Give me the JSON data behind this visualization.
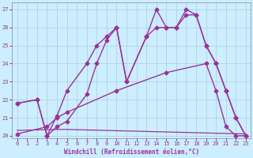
{
  "xlabel": "Windchill (Refroidissement éolien,°C)",
  "bg_color": "#cceeff",
  "grid_color": "#aaccdd",
  "line_color": "#993399",
  "xlim": [
    -0.5,
    23.5
  ],
  "ylim": [
    19.85,
    27.4
  ],
  "yticks": [
    20,
    21,
    22,
    23,
    24,
    25,
    26,
    27
  ],
  "xticks": [
    0,
    1,
    2,
    3,
    4,
    5,
    6,
    7,
    8,
    9,
    10,
    11,
    12,
    13,
    14,
    15,
    16,
    17,
    18,
    19,
    20,
    21,
    22,
    23
  ],
  "series": [
    {
      "x": [
        0,
        2,
        3,
        4,
        5,
        7,
        8,
        9,
        10,
        11,
        13,
        14,
        15,
        16,
        17,
        18,
        19,
        20,
        21,
        22,
        23
      ],
      "y": [
        21.8,
        22.0,
        20.0,
        21.1,
        22.5,
        24.0,
        25.0,
        25.5,
        26.0,
        23.0,
        25.5,
        27.0,
        26.0,
        26.0,
        27.0,
        26.7,
        25.0,
        24.0,
        22.5,
        21.0,
        20.0
      ],
      "marker": "D",
      "markersize": 2.5,
      "linewidth": 1.0
    },
    {
      "x": [
        0,
        2,
        3,
        4,
        5,
        7,
        8,
        9,
        10,
        11,
        13,
        14,
        15,
        16,
        17,
        18,
        19,
        20,
        21,
        22,
        23
      ],
      "y": [
        21.8,
        22.0,
        20.0,
        20.5,
        20.8,
        22.3,
        24.0,
        25.3,
        26.0,
        23.0,
        25.5,
        26.0,
        26.0,
        26.0,
        26.7,
        26.7,
        25.0,
        24.0,
        22.5,
        21.0,
        20.0
      ],
      "marker": "D",
      "markersize": 2.5,
      "linewidth": 1.0
    },
    {
      "x": [
        0,
        3,
        4,
        5,
        10,
        15,
        19,
        20,
        21,
        22,
        23
      ],
      "y": [
        20.1,
        20.5,
        21.0,
        21.3,
        22.5,
        23.5,
        24.0,
        22.5,
        20.5,
        20.0,
        20.0
      ],
      "marker": "D",
      "markersize": 2.5,
      "linewidth": 1.0
    },
    {
      "x": [
        0,
        4,
        5,
        23
      ],
      "y": [
        20.3,
        20.35,
        20.35,
        20.1
      ],
      "marker": null,
      "markersize": 0,
      "linewidth": 0.9
    }
  ]
}
